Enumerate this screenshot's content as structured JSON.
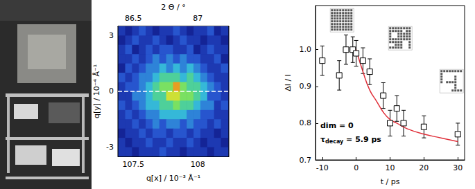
{
  "chart_data": [
    {
      "type": "heatmap",
      "x_label": "q[x] / 10⁻³ Å⁻¹",
      "x2_label": "2 Θ / °",
      "y_label": "q[y] / 10⁻⁴ Å⁻¹",
      "xlim": [
        107.38,
        108.24
      ],
      "xticks": [
        107.5,
        108
      ],
      "x2lim": [
        86.38,
        87.24
      ],
      "x2ticks": [
        86.5,
        87
      ],
      "ylim": [
        -3.5,
        3.5
      ],
      "yticks": [
        -3,
        0,
        3
      ],
      "x": [
        107.41,
        107.463,
        107.516,
        107.569,
        107.622,
        107.675,
        107.728,
        107.781,
        107.834,
        107.887,
        107.94,
        107.993,
        108.046,
        108.099,
        108.152,
        108.205
      ],
      "y": [
        3.25,
        2.75,
        2.25,
        1.75,
        1.25,
        0.75,
        0.25,
        -0.25,
        -0.75,
        -1.25,
        -1.75,
        -2.25,
        -2.75,
        -3.25
      ],
      "cells": [
        [
          2,
          1,
          2,
          3,
          2,
          1,
          2,
          2,
          3,
          2,
          1,
          2,
          2,
          3,
          1,
          2
        ],
        [
          1,
          2,
          3,
          2,
          2,
          3,
          2,
          1,
          2,
          3,
          2,
          2,
          1,
          2,
          2,
          1
        ],
        [
          2,
          3,
          1,
          2,
          3,
          2,
          3,
          3,
          2,
          2,
          3,
          1,
          2,
          3,
          2,
          2
        ],
        [
          2,
          2,
          3,
          2,
          3,
          4,
          3,
          4,
          3,
          4,
          3,
          3,
          2,
          2,
          3,
          1
        ],
        [
          1,
          3,
          2,
          3,
          4,
          4,
          5,
          4,
          5,
          4,
          5,
          4,
          3,
          2,
          2,
          3
        ],
        [
          3,
          2,
          3,
          4,
          4,
          5,
          6,
          6,
          6,
          5,
          6,
          5,
          4,
          3,
          2,
          2
        ],
        [
          2,
          3,
          3,
          4,
          5,
          6,
          7,
          7,
          9,
          7,
          6,
          6,
          5,
          4,
          3,
          2
        ],
        [
          2,
          2,
          4,
          4,
          5,
          6,
          6,
          8,
          8,
          7,
          7,
          6,
          5,
          3,
          3,
          2
        ],
        [
          3,
          2,
          3,
          4,
          5,
          5,
          6,
          6,
          7,
          6,
          6,
          5,
          4,
          4,
          2,
          3
        ],
        [
          2,
          3,
          2,
          3,
          4,
          4,
          5,
          5,
          5,
          5,
          4,
          4,
          3,
          3,
          2,
          2
        ],
        [
          2,
          2,
          3,
          2,
          3,
          4,
          3,
          4,
          4,
          3,
          4,
          3,
          3,
          2,
          3,
          2
        ],
        [
          1,
          2,
          2,
          3,
          2,
          3,
          3,
          2,
          3,
          3,
          2,
          3,
          2,
          2,
          1,
          2
        ],
        [
          2,
          1,
          2,
          2,
          3,
          2,
          2,
          3,
          2,
          2,
          3,
          2,
          1,
          2,
          2,
          1
        ],
        [
          2,
          2,
          1,
          2,
          2,
          2,
          3,
          2,
          2,
          1,
          2,
          2,
          2,
          1,
          2,
          2
        ]
      ],
      "value_range": [
        0,
        10
      ],
      "reference_lines": [
        {
          "y": 0,
          "line_style": "dashed",
          "color": "#ffffff"
        }
      ],
      "grid": false
    },
    {
      "type": "scatter",
      "x_label": "t / ps",
      "y_label": "ΔI / I",
      "xlim": [
        -12,
        32
      ],
      "xticks": [
        -10,
        0,
        10,
        20,
        30
      ],
      "ylim": [
        0.7,
        1.12
      ],
      "yticks": [
        0.7,
        0.8,
        0.9,
        {
          "value": 1,
          "label": "1.0"
        }
      ],
      "points": {
        "x": [
          -10,
          -5,
          -3,
          -1,
          0,
          2,
          4,
          8,
          10,
          12,
          14,
          20,
          30
        ],
        "values": [
          0.97,
          0.93,
          1.0,
          1.0,
          0.99,
          0.97,
          0.94,
          0.875,
          0.8,
          0.84,
          0.8,
          0.79,
          0.77
        ],
        "errors": [
          0.04,
          0.04,
          0.04,
          0.035,
          0.035,
          0.035,
          0.035,
          0.035,
          0.035,
          0.035,
          0.035,
          0.03,
          0.03
        ],
        "marker": "square_open",
        "color": "#000000"
      },
      "fit": {
        "type": "line",
        "color": "#e0303a",
        "x": [
          0,
          2,
          4,
          6,
          8,
          10,
          12,
          15,
          20,
          25,
          30
        ],
        "values": [
          1.0,
          0.94,
          0.89,
          0.86,
          0.83,
          0.81,
          0.8,
          0.785,
          0.77,
          0.76,
          0.75
        ]
      },
      "annotations": [
        {
          "text": "dim = 0"
        },
        {
          "text": "τdecay = 5.9 ps",
          "subscript": "decay"
        }
      ],
      "grid": false
    }
  ]
}
